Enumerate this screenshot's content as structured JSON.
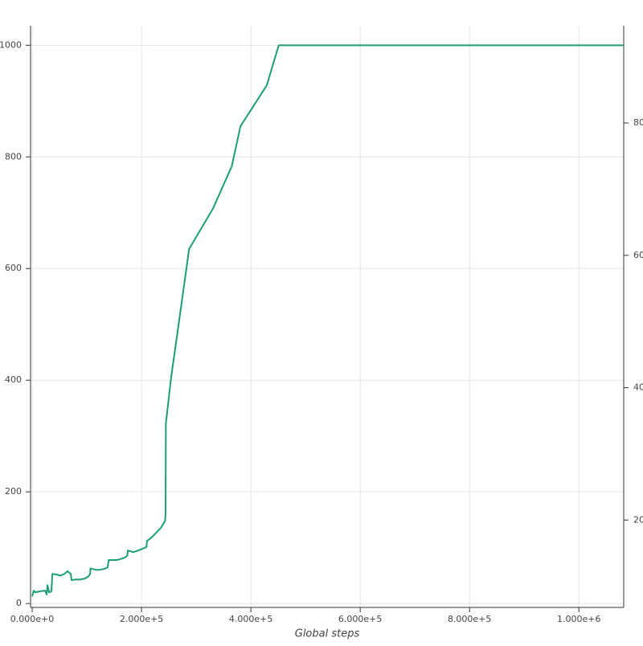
{
  "chart_data": {
    "type": "line",
    "x_label": "Global steps",
    "xlim": [
      -3000,
      1082000
    ],
    "xticks": [
      {
        "value": 0,
        "label": "0.000e+0"
      },
      {
        "value": 200000,
        "label": "2.000e+5"
      },
      {
        "value": 400000,
        "label": "4.000e+5"
      },
      {
        "value": 600000,
        "label": "6.000e+5"
      },
      {
        "value": 800000,
        "label": "8.000e+5"
      },
      {
        "value": 1000000,
        "label": "1.000e+6"
      }
    ],
    "ylim": [
      -7,
      1035
    ],
    "yticks": [
      0,
      200,
      400,
      600,
      800,
      1000
    ],
    "y2lim": [
      6.8,
      94.7
    ],
    "y2ticks": [
      20,
      40,
      60,
      80
    ],
    "grid": true,
    "series": [
      {
        "color": "#1b9e77",
        "x": [
          0,
          2900,
          5900,
          14700,
          23500,
          26500,
          27900,
          30900,
          35300,
          36800,
          44000,
          51500,
          58800,
          64700,
          70600,
          72000,
          79400,
          88200,
          97000,
          103000,
          106000,
          106500,
          109000,
          121000,
          132000,
          138000,
          140000,
          156000,
          169000,
          174000,
          175000,
          185000,
          194000,
          204000,
          209000,
          210000,
          218000,
          235000,
          243000,
          244000,
          244500,
          254000,
          271000,
          287000,
          331000,
          365000,
          381000,
          429000,
          451000,
          1082000
        ],
        "values": [
          13,
          23,
          20,
          22,
          23,
          16,
          33,
          20,
          22,
          53,
          52,
          50,
          53,
          58,
          53,
          42,
          43,
          43,
          45,
          49,
          53,
          63,
          62,
          60,
          62,
          65,
          78,
          78,
          82,
          86,
          95,
          92,
          95,
          99,
          101,
          112,
          118,
          135,
          148,
          160,
          322,
          404,
          522,
          635,
          708,
          783,
          855,
          928,
          1000,
          1000
        ]
      }
    ]
  }
}
